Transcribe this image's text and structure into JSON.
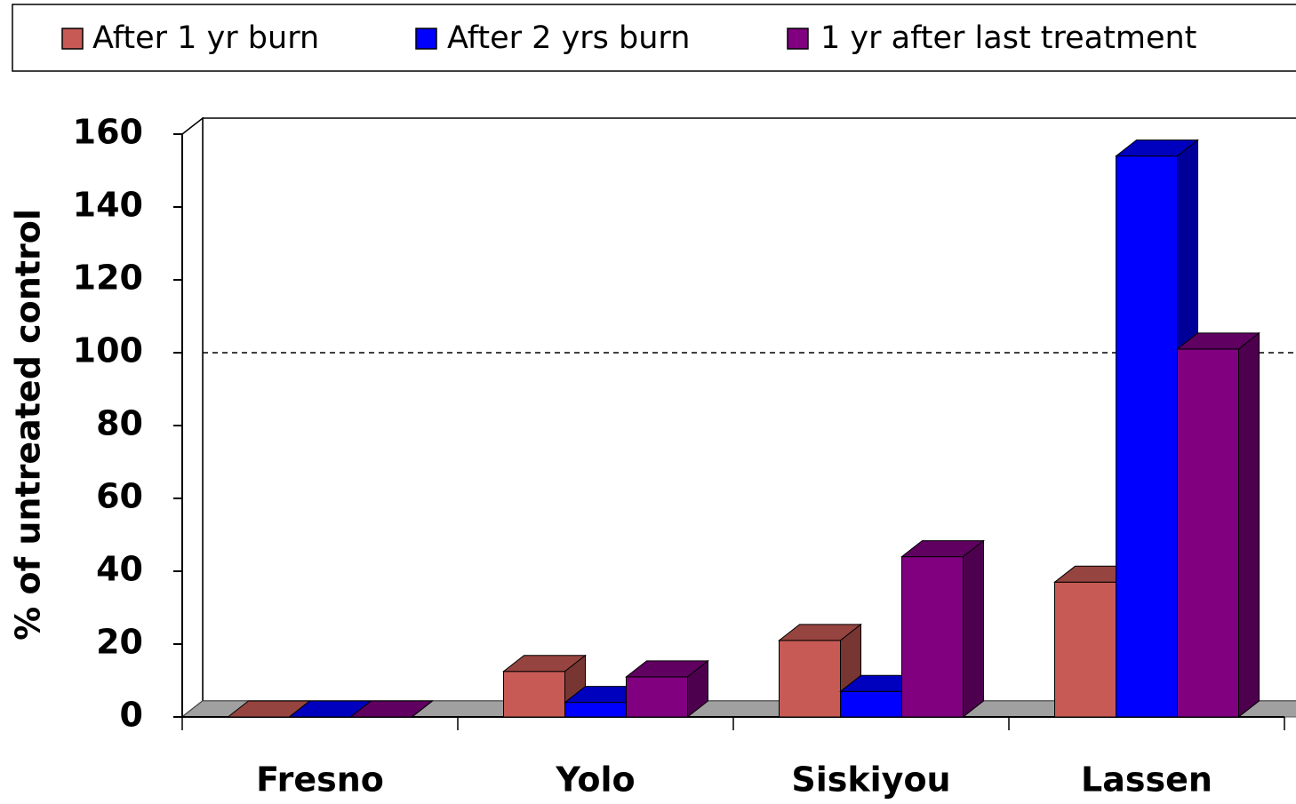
{
  "chart_data": {
    "type": "bar",
    "y_label": "% of untreated control",
    "categories": [
      "Fresno",
      "Yolo",
      "Siskiyou",
      "Lassen"
    ],
    "series": [
      {
        "name": "After 1 yr burn",
        "color": "#c85a55",
        "values": [
          0,
          12.5,
          21,
          37
        ]
      },
      {
        "name": "After 2 yrs burn",
        "color": "#0000ff",
        "values": [
          0,
          4,
          7,
          154
        ]
      },
      {
        "name": "1 yr after last treatment",
        "color": "#800080",
        "values": [
          0,
          11,
          44,
          101
        ]
      }
    ],
    "ylim": [
      0,
      160
    ],
    "yticks": [
      0,
      20,
      40,
      60,
      80,
      100,
      120,
      140,
      160
    ],
    "reference_line": 100,
    "legend": "top"
  }
}
